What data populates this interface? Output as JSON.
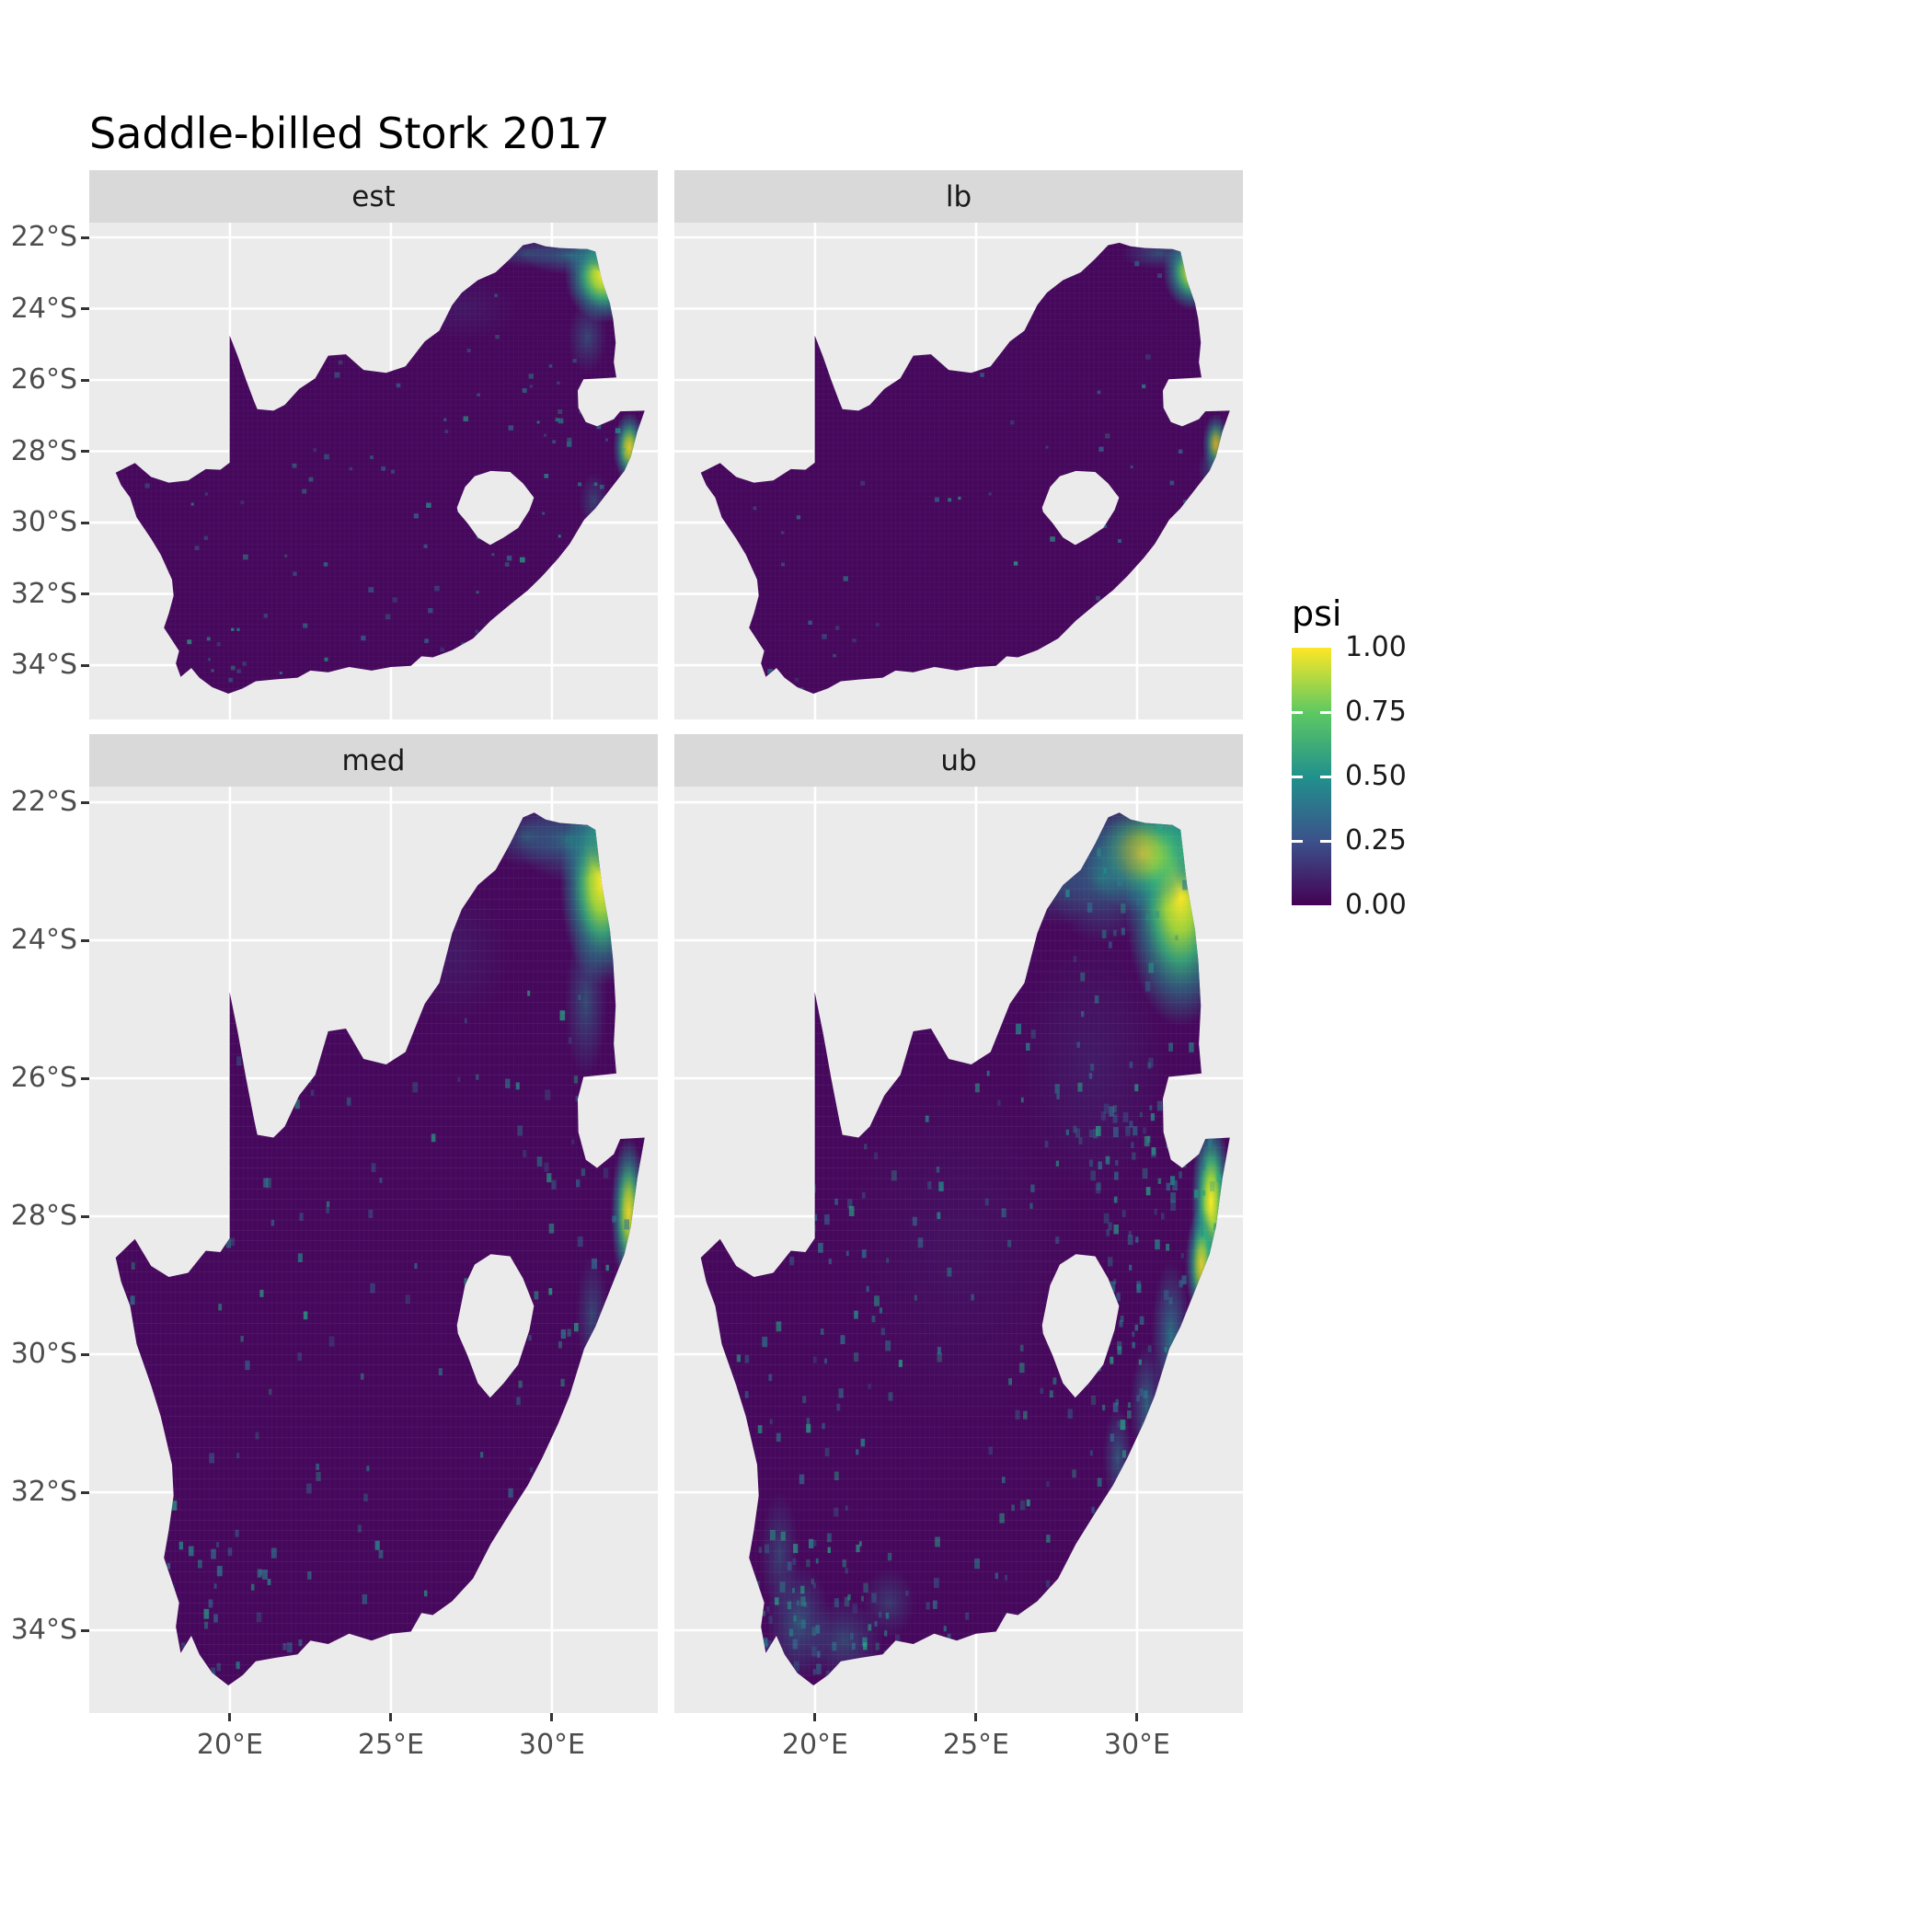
{
  "title": "Saddle-billed Stork 2017",
  "facets": [
    {
      "label": "est"
    },
    {
      "label": "lb"
    },
    {
      "label": "med"
    },
    {
      "label": "ub"
    }
  ],
  "axes": {
    "y_ticks": [
      "22°S",
      "24°S",
      "26°S",
      "28°S",
      "30°S",
      "32°S",
      "34°S"
    ],
    "x_ticks": [
      "20°E",
      "25°E",
      "30°E"
    ]
  },
  "legend": {
    "title": "psi",
    "labels": [
      "1.00",
      "0.75",
      "0.50",
      "0.25",
      "0.00"
    ]
  },
  "colors": {
    "panel_bg": "#EBEBEB",
    "strip_bg": "#D9D9D9",
    "gridline": "#FFFFFF",
    "axis_text": "#4D4D4D",
    "strip_text": "#1A1A1A",
    "title_text": "#000000",
    "map_base": "#46085C",
    "viridis": [
      "#440154",
      "#3B528B",
      "#21918C",
      "#5EC962",
      "#FDE725"
    ]
  },
  "chart_data": {
    "type": "heatmap",
    "title": "Saddle-billed Stork 2017",
    "variable": "psi",
    "value_range": [
      0,
      1
    ],
    "palette": "viridis",
    "facets": [
      "est",
      "lb",
      "med",
      "ub"
    ],
    "facet_layout": [
      [
        "est",
        "lb"
      ],
      [
        "med",
        "ub"
      ]
    ],
    "region": "South Africa raster map (Lesotho shown as hole; Eswatini notch on east border)",
    "x_ticks_deg_east": [
      20,
      25,
      30
    ],
    "y_ticks_deg_south": [
      22,
      24,
      26,
      28,
      30,
      32,
      34
    ],
    "background_value": "psi near 0 (dark purple) over most of the country in all four facets",
    "high_regions": [
      {
        "name": "Kruger / Limpopo lowveld, north-east corner",
        "lon_e": [
          29.5,
          32.3
        ],
        "lat_s": [
          22.1,
          25.6
        ],
        "psi": "0.5 to 1.0, yellow-green"
      },
      {
        "name": "Maputaland / northern KwaZulu-Natal coast",
        "lon_e": [
          31.7,
          32.9
        ],
        "lat_s": [
          26.9,
          28.7
        ],
        "psi": "0.25 to 1.0, green-yellow strip"
      },
      {
        "name": "scattered low-mid cells elsewhere",
        "lon_e": [
          17,
          33
        ],
        "lat_s": [
          22,
          35
        ],
        "psi": "0.1 to 0.4, sparse teal speckles, most numerous in ub facet"
      }
    ],
    "facet_intensity": {
      "est": 0.8,
      "lb": 0.55,
      "med": 0.85,
      "ub": 1.0
    },
    "facet_speckles": {
      "est": 150,
      "lb": 70,
      "med": 190,
      "ub": 520
    }
  }
}
